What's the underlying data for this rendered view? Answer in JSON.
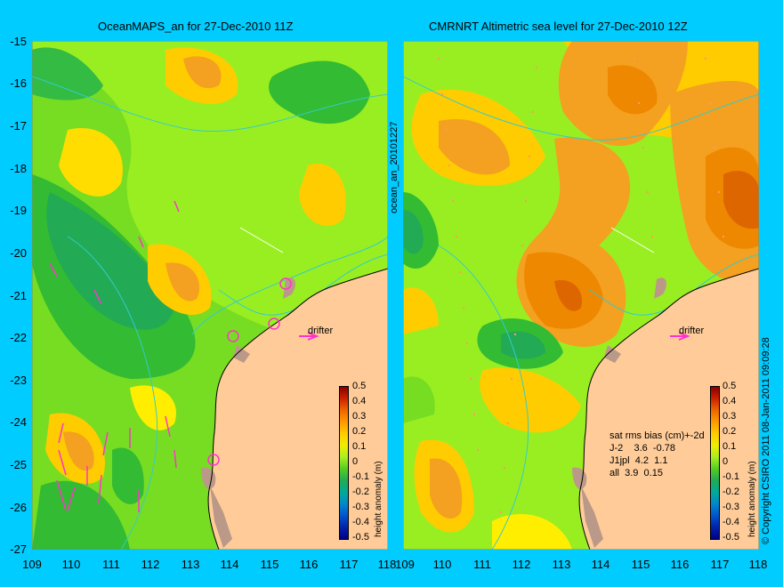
{
  "titles": {
    "left": "OceanMAPS_an for 27-Dec-2010 11Z",
    "right": "CMRNRT Altimetric sea level  for 27-Dec-2010 12Z"
  },
  "y_ticks": [
    "-15",
    "-16",
    "-17",
    "-18",
    "-19",
    "-20",
    "-21",
    "-22",
    "-23",
    "-24",
    "-25",
    "-26",
    "-27"
  ],
  "x_ticks": [
    "109",
    "110",
    "111",
    "112",
    "113",
    "114",
    "115",
    "116",
    "117",
    "118"
  ],
  "x_ticks_right_first": "109",
  "side_label": "ocean_an_20101227",
  "colorbar": {
    "label": "height anomaly (m)",
    "ticks": [
      "0.5",
      "0.4",
      "0.3",
      "0.2",
      "0.1",
      "0",
      "-0.1",
      "-0.2",
      "-0.3",
      "-0.4",
      "-0.5"
    ]
  },
  "drifter_label": "drifter",
  "stats": {
    "header": "sat rms bias (cm)+-2d",
    "rows": [
      "J-2    3.6  -0.78",
      "J1jpl  4.2  1.1",
      "all  3.9  0.15"
    ]
  },
  "copyright": "© Copyright CSIRO 2011   08-Jan-2011 09:09:28",
  "colors": {
    "background": "#00ccff",
    "land": "#ffcc99",
    "bathymetry": "#33cccc",
    "vectors": "#ff33cc",
    "tracks": "#ff9966"
  }
}
